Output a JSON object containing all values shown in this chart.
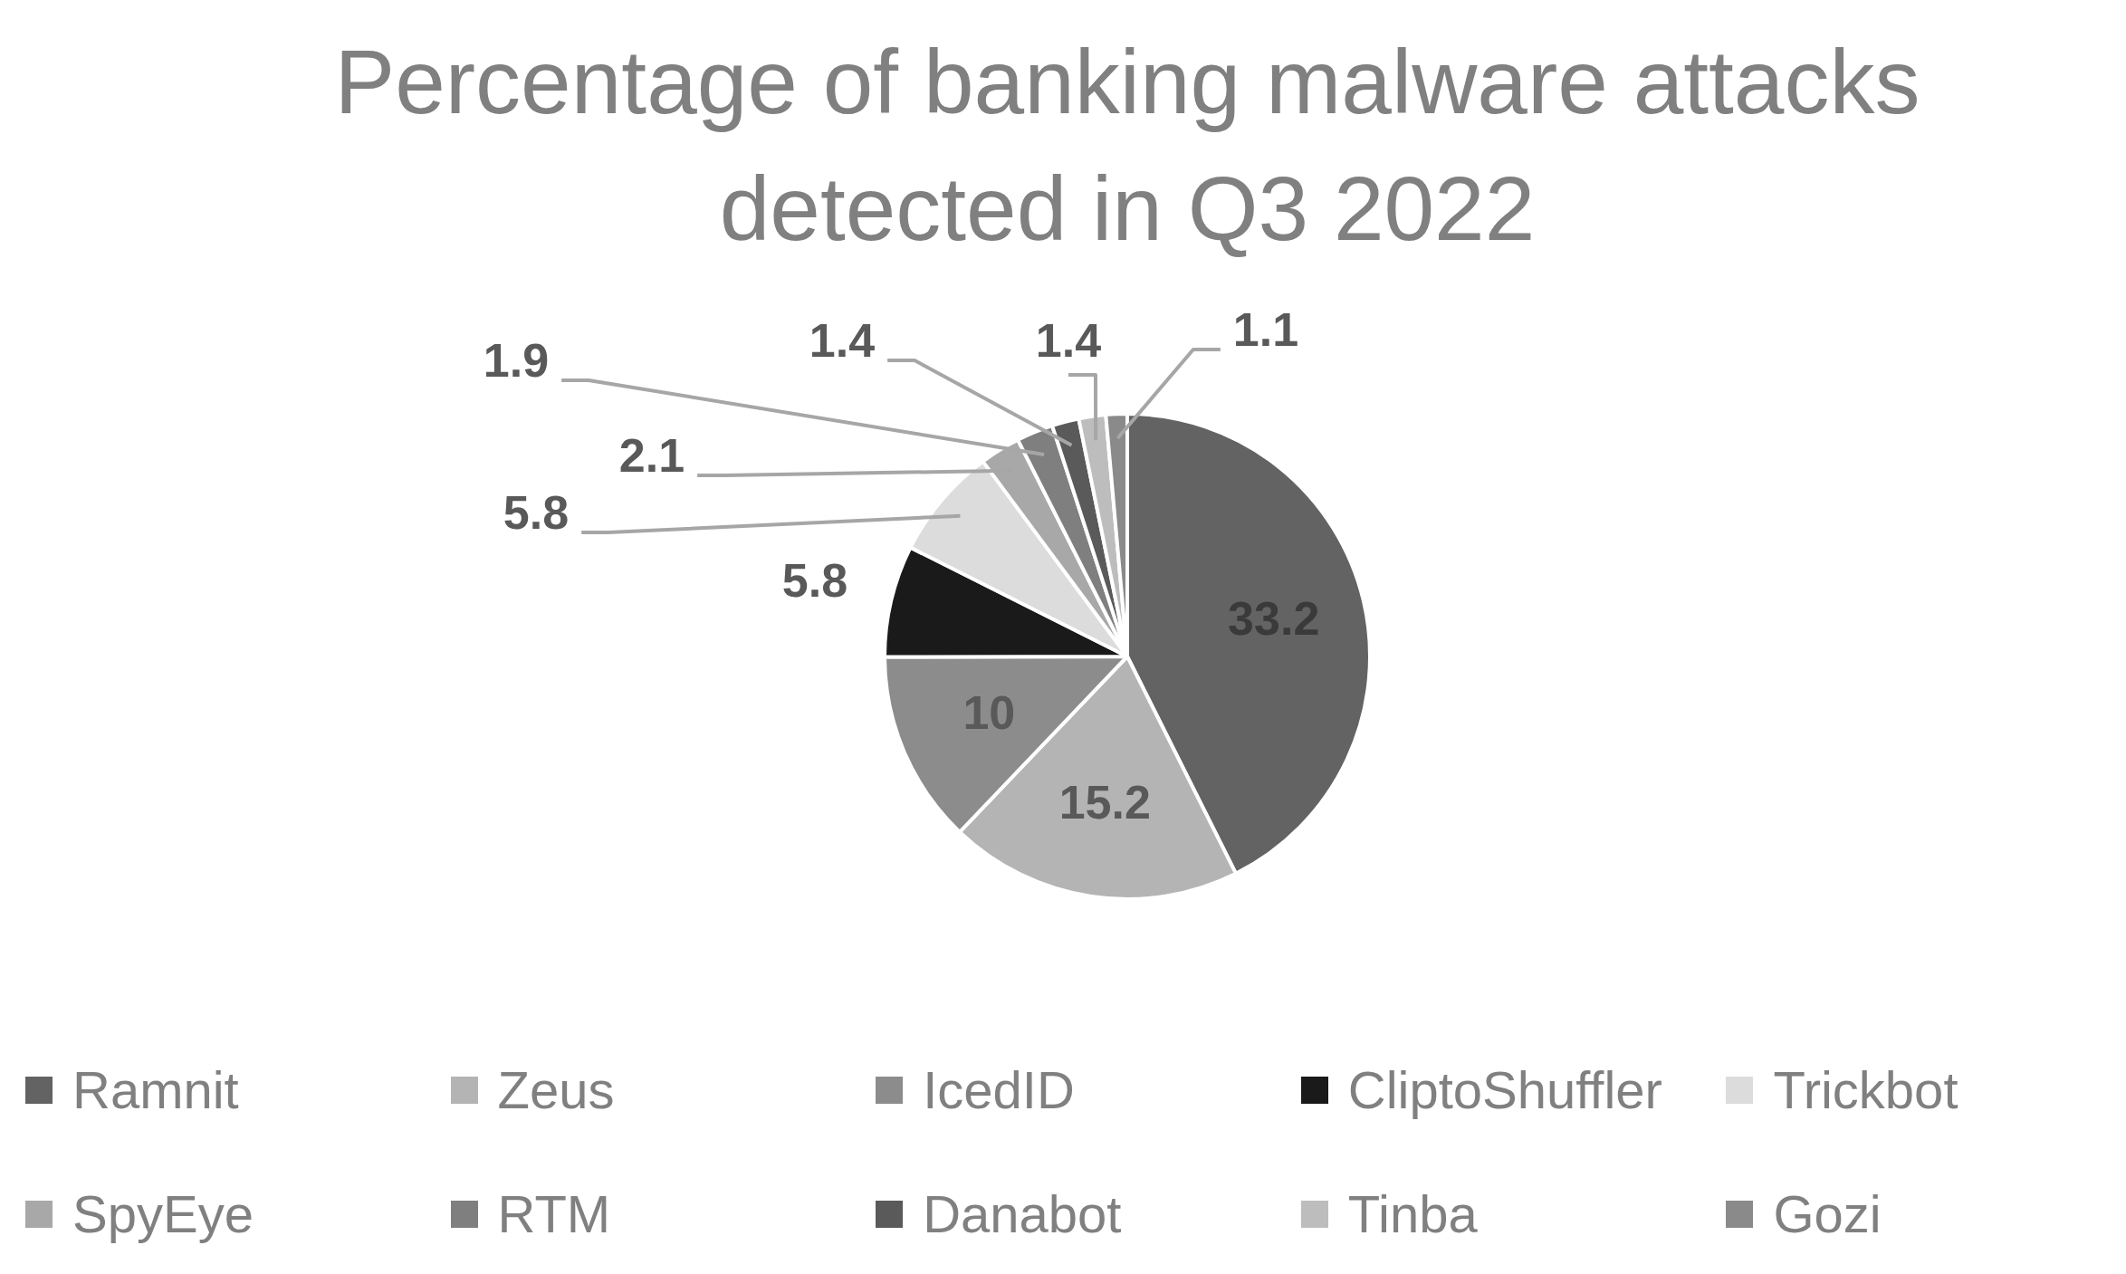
{
  "chart_data": {
    "type": "pie",
    "title": "Percentage of banking malware attacks detected in Q3 2022",
    "categories": [
      "Ramnit",
      "Zeus",
      "IcedID",
      "CliptoShuffler",
      "Trickbot",
      "SpyEye",
      "RTM",
      "Danabot",
      "Tinba",
      "Gozi"
    ],
    "values": [
      33.2,
      15.2,
      10,
      5.8,
      5.8,
      2.1,
      1.9,
      1.4,
      1.4,
      1.1
    ],
    "colors": [
      "#636363",
      "#b4b4b4",
      "#8c8c8c",
      "#1a1a1a",
      "#dcdcdc",
      "#a8a8a8",
      "#7f7f7f",
      "#5a5a5a",
      "#bdbdbd",
      "#8a8a8a"
    ],
    "data_labels": true,
    "legend": "bottom"
  }
}
